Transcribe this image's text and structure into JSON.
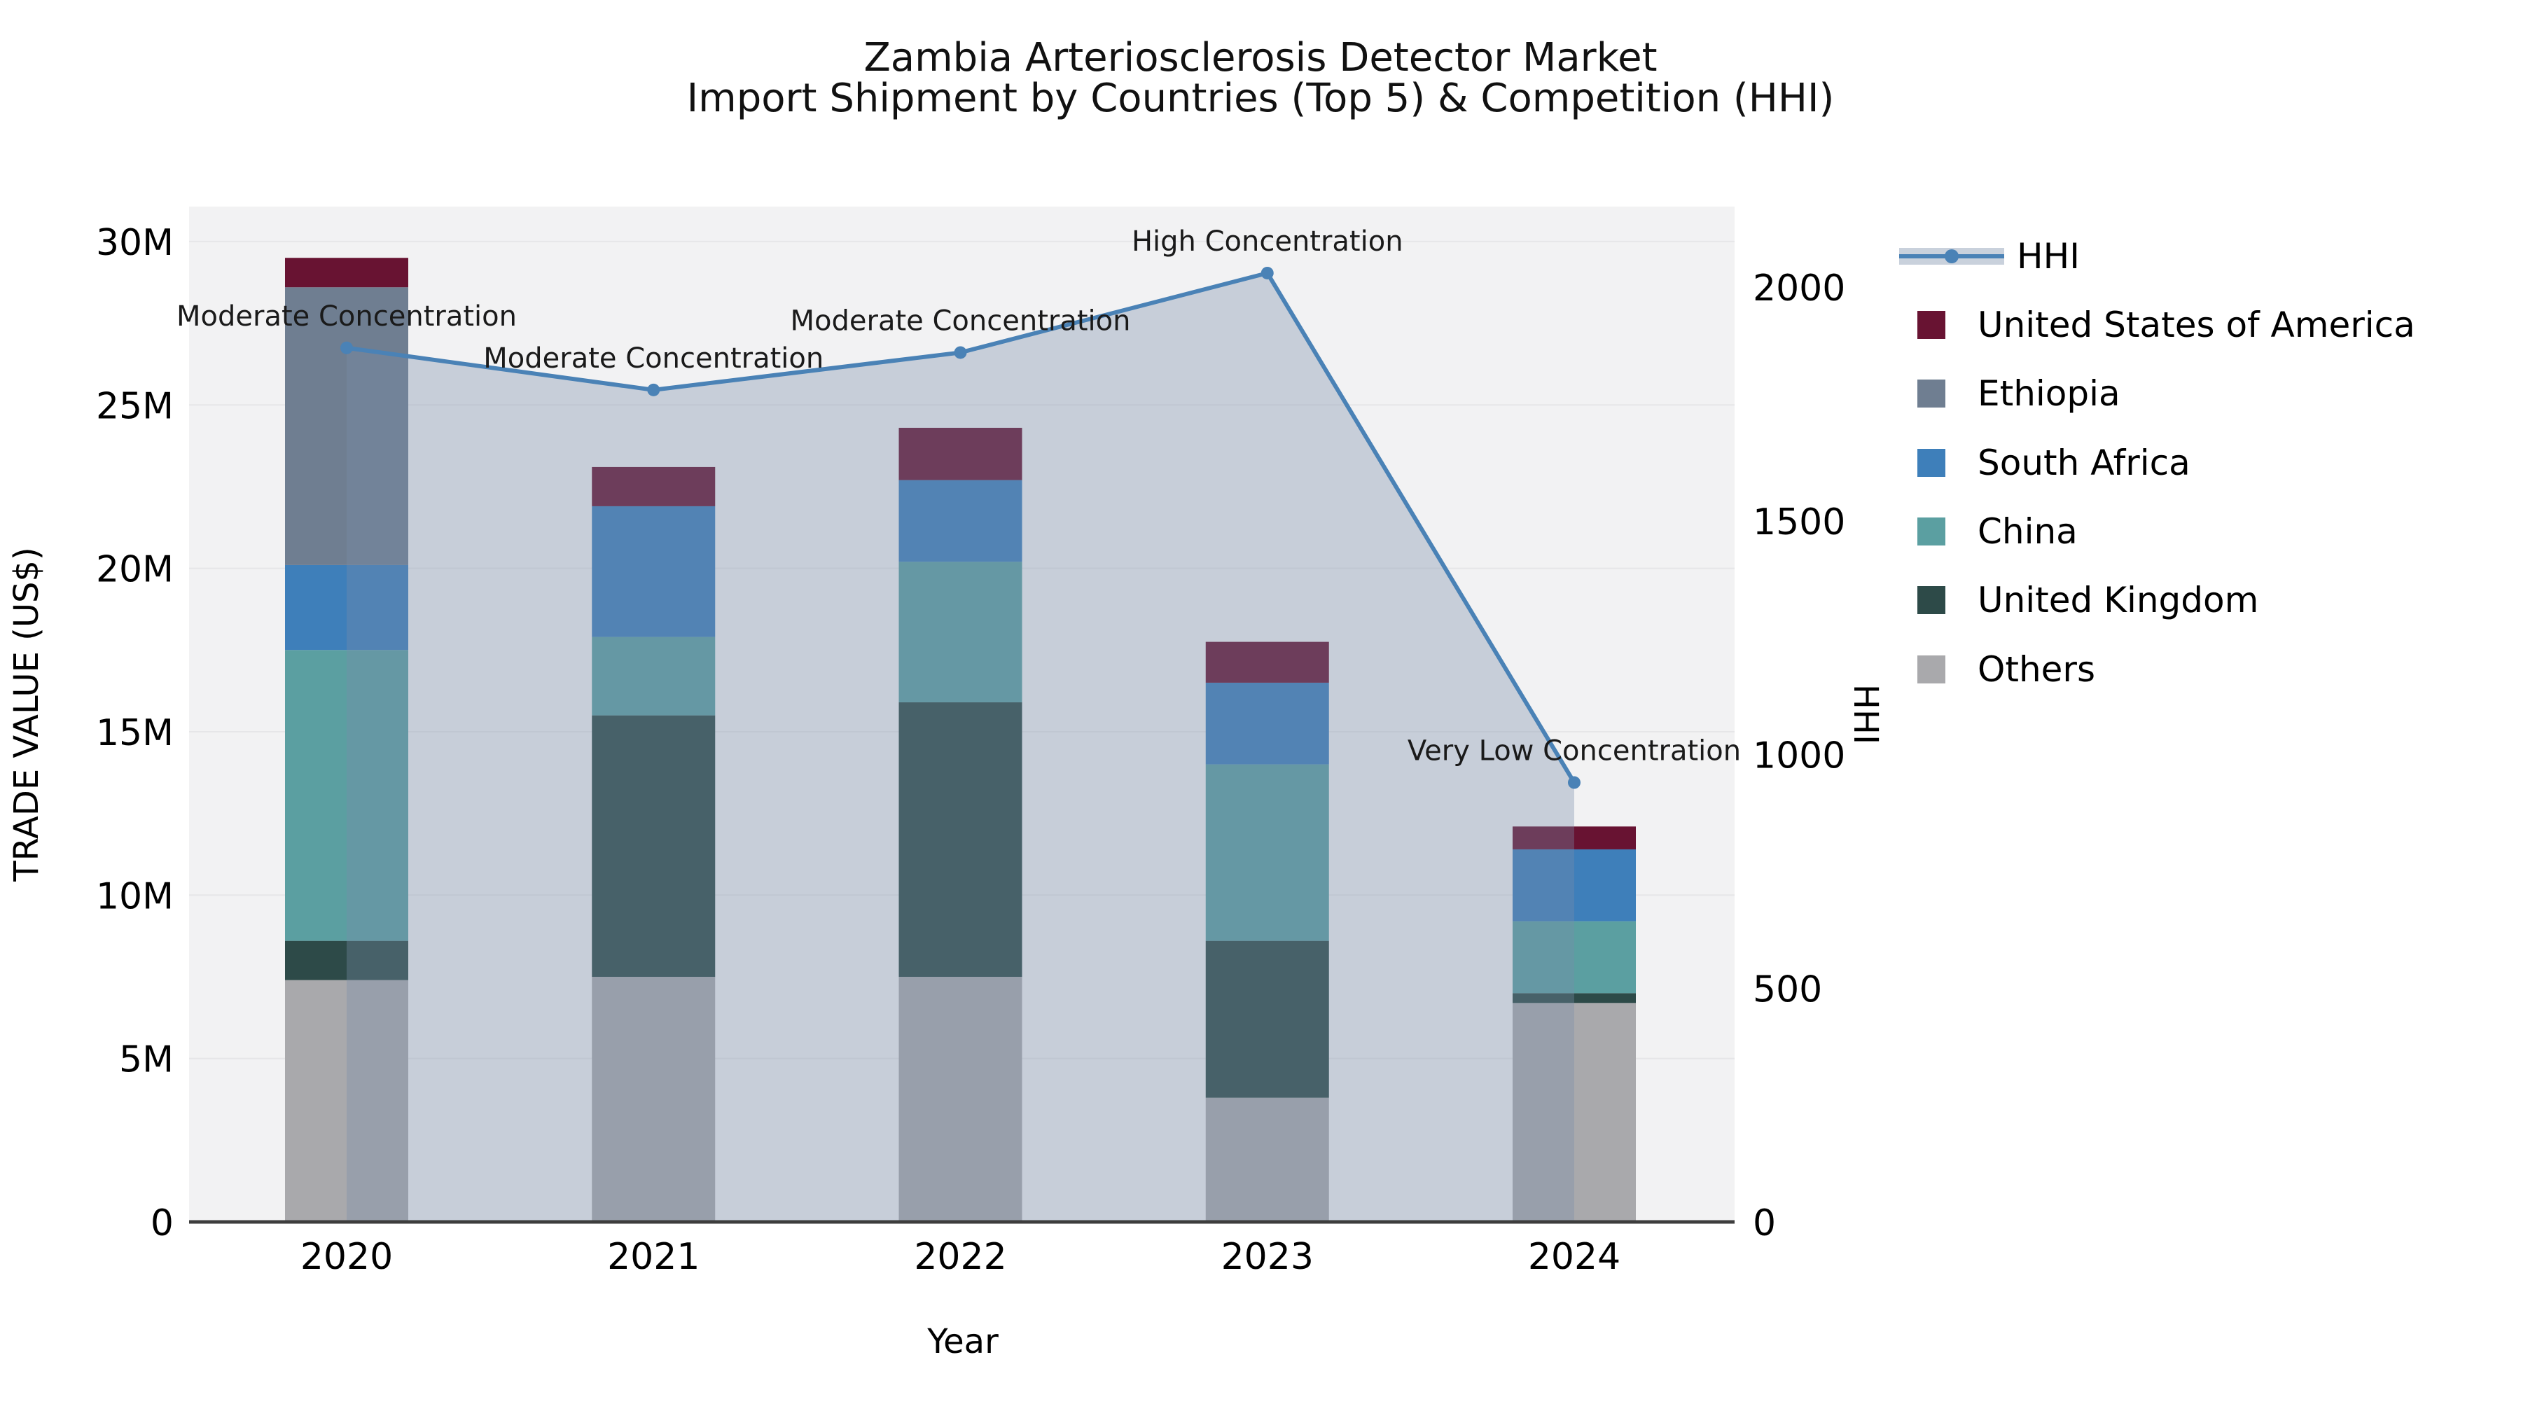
{
  "chart_data": {
    "type": "bar",
    "subtype": "stacked-bars-with-line-and-area-overlay",
    "title": "Zambia Arteriosclerosis Detector Market",
    "subtitle": "Import Shipment by Countries (Top 5) & Competition (HHI)",
    "xlabel": "Year",
    "ylabel_left": "TRADE VALUE (US$)",
    "ylabel_right": "HHI",
    "categories": [
      "2020",
      "2021",
      "2022",
      "2023",
      "2024"
    ],
    "units": "millions of US$",
    "stacked_bar_series": [
      {
        "name": "United States of America",
        "color": "#681332",
        "values_musd": [
          0.9,
          1.2,
          1.6,
          1.25,
          0.7
        ]
      },
      {
        "name": "Ethiopia",
        "color": "#6f7e91",
        "values_musd": [
          8.5,
          0,
          0,
          0,
          0
        ]
      },
      {
        "name": "South Africa",
        "color": "#3e7fba",
        "values_musd": [
          2.6,
          4.0,
          2.5,
          2.5,
          2.2
        ]
      },
      {
        "name": "China",
        "color": "#5b9fa1",
        "values_musd": [
          8.9,
          2.4,
          4.3,
          5.4,
          2.2
        ]
      },
      {
        "name": "United Kingdom",
        "color": "#2d4a48",
        "values_musd": [
          1.2,
          8.0,
          8.4,
          4.8,
          0.3
        ]
      },
      {
        "name": "Others",
        "color": "#a9a9ac",
        "values_musd": [
          7.4,
          7.5,
          7.5,
          3.8,
          6.7
        ]
      }
    ],
    "bar_totals_musd": [
      29.5,
      23.1,
      24.3,
      17.75,
      12.1
    ],
    "line_series": {
      "name": "HHI",
      "color": "#4a82b6",
      "area_color": "rgba(120,140,170,0.35)",
      "values": [
        1870,
        1780,
        1860,
        2030,
        940
      ]
    },
    "annotations": [
      "Moderate Concentration",
      "Moderate Concentration",
      "Moderate Concentration",
      "High Concentration",
      "Very Low Concentration"
    ],
    "left_axis": {
      "tick_values": [
        0,
        5,
        10,
        15,
        20,
        25,
        30
      ],
      "tick_labels": [
        "0",
        "5M",
        "10M",
        "15M",
        "20M",
        "25M",
        "30M"
      ],
      "range_musd": [
        0,
        30
      ]
    },
    "right_axis": {
      "tick_values": [
        0,
        500,
        1000,
        1500,
        2000
      ],
      "tick_labels": [
        "0",
        "500",
        "1000",
        "1500",
        "2000"
      ],
      "range": [
        0,
        2172
      ]
    },
    "legend": {
      "entries": [
        "HHI",
        "United States of America",
        "Ethiopia",
        "South Africa",
        "China",
        "United Kingdom",
        "Others"
      ],
      "position": "right"
    },
    "colors": {
      "figure_background": "#ffffff",
      "plot_background": "#f2f2f3",
      "gridline": "#e6e6e8",
      "axis_line": "#3d3d3d",
      "annotation_text": "#1a1a1a",
      "tick_text": "#000000"
    },
    "grid": "horizontal-only"
  }
}
